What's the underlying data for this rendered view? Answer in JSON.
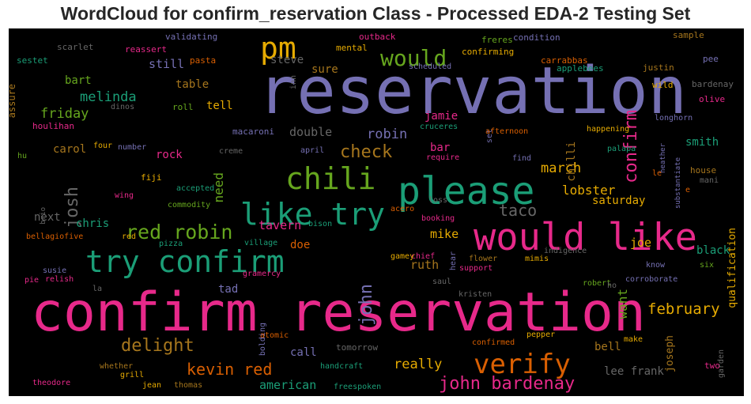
{
  "title": "WordCloud for confirm_reservation Class - Processed EDA-2 Testing Set",
  "chart_data": {
    "type": "wordcloud",
    "title": "WordCloud for confirm_reservation Class - Processed EDA-2 Testing Set",
    "background": "#000000",
    "colors": {
      "purple": "#7570b3",
      "green": "#1b9e77",
      "pink": "#e7298a",
      "orange": "#d95f02",
      "olive": "#66a61e",
      "gold": "#e6ab02",
      "brown": "#a6761d",
      "gray": "#666666"
    },
    "words": [
      {
        "text": "reservation",
        "color": "purple"
      },
      {
        "text": "confirm reservation",
        "color": "pink"
      },
      {
        "text": "would like",
        "color": "pink"
      },
      {
        "text": "please",
        "color": "green"
      },
      {
        "text": "try confirm",
        "color": "green"
      },
      {
        "text": "chili",
        "color": "olive"
      },
      {
        "text": "like try",
        "color": "green"
      },
      {
        "text": "pm",
        "color": "gold"
      },
      {
        "text": "verify",
        "color": "orange"
      },
      {
        "text": "would",
        "color": "olive"
      },
      {
        "text": "red robin",
        "color": "olive"
      },
      {
        "text": "confirm",
        "color": "pink"
      },
      {
        "text": "john bardenay",
        "color": "pink"
      },
      {
        "text": "kevin red",
        "color": "orange"
      },
      {
        "text": "delight",
        "color": "brown"
      },
      {
        "text": "check",
        "color": "brown"
      },
      {
        "text": "josh",
        "color": "gray"
      },
      {
        "text": "john",
        "color": "purple"
      },
      {
        "text": "february",
        "color": "gold"
      },
      {
        "text": "taco",
        "color": "gray"
      },
      {
        "text": "lobster",
        "color": "gold"
      },
      {
        "text": "march",
        "color": "gold"
      },
      {
        "text": "really",
        "color": "gold"
      },
      {
        "text": "friday",
        "color": "olive"
      },
      {
        "text": "melinda",
        "color": "green"
      },
      {
        "text": "robin",
        "color": "purple"
      },
      {
        "text": "american",
        "color": "green"
      },
      {
        "text": "lee frank",
        "color": "gray"
      },
      {
        "text": "want",
        "color": "olive"
      },
      {
        "text": "need",
        "color": "olive"
      },
      {
        "text": "bart",
        "color": "olive"
      },
      {
        "text": "chris",
        "color": "green"
      },
      {
        "text": "mike",
        "color": "gold"
      },
      {
        "text": "steve",
        "color": "gray"
      },
      {
        "text": "table",
        "color": "brown"
      },
      {
        "text": "carol",
        "color": "brown"
      },
      {
        "text": "still",
        "color": "purple"
      },
      {
        "text": "double",
        "color": "gray"
      },
      {
        "text": "tavern",
        "color": "pink"
      },
      {
        "text": "ruth",
        "color": "brown"
      },
      {
        "text": "jamie",
        "color": "pink"
      },
      {
        "text": "saturday",
        "color": "gold"
      },
      {
        "text": "joe",
        "color": "gold"
      },
      {
        "text": "smith",
        "color": "green"
      },
      {
        "text": "black",
        "color": "green"
      },
      {
        "text": "qualification",
        "color": "gold"
      },
      {
        "text": "joseph",
        "color": "brown"
      },
      {
        "text": "bell",
        "color": "brown"
      },
      {
        "text": "call",
        "color": "purple"
      },
      {
        "text": "tell",
        "color": "gold"
      },
      {
        "text": "sure",
        "color": "brown"
      },
      {
        "text": "rock",
        "color": "pink"
      },
      {
        "text": "next",
        "color": "gray"
      },
      {
        "text": "doe",
        "color": "orange"
      },
      {
        "text": "tad",
        "color": "purple"
      },
      {
        "text": "bar",
        "color": "pink"
      },
      {
        "text": "chilli",
        "color": "brown"
      },
      {
        "text": "assure",
        "color": "brown"
      },
      {
        "text": "scarlet",
        "color": "gray"
      },
      {
        "text": "validating",
        "color": "purple"
      },
      {
        "text": "sestet",
        "color": "green"
      },
      {
        "text": "reassert",
        "color": "pink"
      },
      {
        "text": "pasta",
        "color": "orange"
      },
      {
        "text": "dinos",
        "color": "gray"
      },
      {
        "text": "roll",
        "color": "olive"
      },
      {
        "text": "houlihan",
        "color": "pink"
      },
      {
        "text": "hu",
        "color": "olive"
      },
      {
        "text": "macaroni",
        "color": "purple"
      },
      {
        "text": "four",
        "color": "gold"
      },
      {
        "text": "number",
        "color": "purple"
      },
      {
        "text": "creme",
        "color": "gray"
      },
      {
        "text": "fiji",
        "color": "gold"
      },
      {
        "text": "wing",
        "color": "pink"
      },
      {
        "text": "accepted",
        "color": "green"
      },
      {
        "text": "commodity",
        "color": "olive"
      },
      {
        "text": "brio",
        "color": "gray"
      },
      {
        "text": "bellagiofive",
        "color": "orange"
      },
      {
        "text": "red",
        "color": "gold"
      },
      {
        "text": "pizza",
        "color": "green"
      },
      {
        "text": "village",
        "color": "green"
      },
      {
        "text": "bison",
        "color": "green"
      },
      {
        "text": "susie",
        "color": "purple"
      },
      {
        "text": "relish",
        "color": "pink"
      },
      {
        "text": "pie",
        "color": "pink"
      },
      {
        "text": "la",
        "color": "gray"
      },
      {
        "text": "gramercy",
        "color": "pink"
      },
      {
        "text": "bolding",
        "color": "purple"
      },
      {
        "text": "atomic",
        "color": "orange"
      },
      {
        "text": "tomorrow",
        "color": "gray"
      },
      {
        "text": "confirmed",
        "color": "orange"
      },
      {
        "text": "pepper",
        "color": "gold"
      },
      {
        "text": "make",
        "color": "gold"
      },
      {
        "text": "two",
        "color": "pink"
      },
      {
        "text": "garden",
        "color": "gray"
      },
      {
        "text": "whether",
        "color": "brown"
      },
      {
        "text": "grill",
        "color": "gold"
      },
      {
        "text": "handcraft",
        "color": "green"
      },
      {
        "text": "theodore",
        "color": "pink"
      },
      {
        "text": "jean",
        "color": "gold"
      },
      {
        "text": "thomas",
        "color": "brown"
      },
      {
        "text": "freespoken",
        "color": "green"
      },
      {
        "text": "outback",
        "color": "pink"
      },
      {
        "text": "mental",
        "color": "gold"
      },
      {
        "text": "confirming",
        "color": "gold"
      },
      {
        "text": "freres",
        "color": "olive"
      },
      {
        "text": "condition",
        "color": "purple"
      },
      {
        "text": "sample",
        "color": "brown"
      },
      {
        "text": "inn",
        "color": "gray"
      },
      {
        "text": "scheduled",
        "color": "purple"
      },
      {
        "text": "carrabbas",
        "color": "orange"
      },
      {
        "text": "applebees",
        "color": "green"
      },
      {
        "text": "justin",
        "color": "brown"
      },
      {
        "text": "pee",
        "color": "purple"
      },
      {
        "text": "wild",
        "color": "gold"
      },
      {
        "text": "bardenay",
        "color": "gray"
      },
      {
        "text": "olive",
        "color": "pink"
      },
      {
        "text": "longhorn",
        "color": "purple"
      },
      {
        "text": "cruceres",
        "color": "green"
      },
      {
        "text": "set",
        "color": "purple"
      },
      {
        "text": "afternoon",
        "color": "orange"
      },
      {
        "text": "happening",
        "color": "gold"
      },
      {
        "text": "heather",
        "color": "purple"
      },
      {
        "text": "april",
        "color": "purple"
      },
      {
        "text": "require",
        "color": "pink"
      },
      {
        "text": "find",
        "color": "purple"
      },
      {
        "text": "palapa",
        "color": "green"
      },
      {
        "text": "substantiate",
        "color": "purple"
      },
      {
        "text": "house",
        "color": "brown"
      },
      {
        "text": "mani",
        "color": "gray"
      },
      {
        "text": "le",
        "color": "orange"
      },
      {
        "text": "e",
        "color": "orange"
      },
      {
        "text": "loss",
        "color": "gray"
      },
      {
        "text": "booking",
        "color": "pink"
      },
      {
        "text": "acero",
        "color": "orange"
      },
      {
        "text": "chief",
        "color": "pink"
      },
      {
        "text": "hear",
        "color": "purple"
      },
      {
        "text": "gamey",
        "color": "gold"
      },
      {
        "text": "indigence",
        "color": "gray"
      },
      {
        "text": "flower",
        "color": "brown"
      },
      {
        "text": "mimis",
        "color": "gold"
      },
      {
        "text": "support",
        "color": "pink"
      },
      {
        "text": "saul",
        "color": "gray"
      },
      {
        "text": "kristen",
        "color": "gray"
      },
      {
        "text": "robert",
        "color": "olive"
      },
      {
        "text": "ho",
        "color": "gray"
      },
      {
        "text": "corroborate",
        "color": "purple"
      },
      {
        "text": "know",
        "color": "purple"
      },
      {
        "text": "six",
        "color": "olive"
      }
    ]
  }
}
